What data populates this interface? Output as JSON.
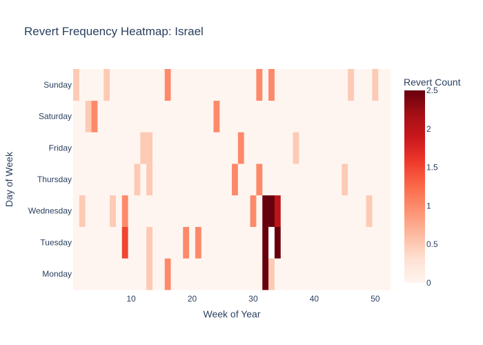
{
  "chart_data": {
    "type": "heatmap",
    "title": "Revert Frequency Heatmap: Israel",
    "xlabel": "Week of Year",
    "ylabel": "Day of Week",
    "colorbar_title": "Revert Count",
    "x_range": [
      0.5,
      52.5
    ],
    "x_ticks": [
      10,
      20,
      30,
      40,
      50
    ],
    "y_categories": [
      "Monday",
      "Tuesday",
      "Wednesday",
      "Thursday",
      "Friday",
      "Saturday",
      "Sunday"
    ],
    "z_range": [
      0,
      2.5
    ],
    "colorbar_ticks": [
      0,
      0.5,
      1,
      1.5,
      2,
      2.5
    ],
    "colorscale": [
      [
        0,
        "#fff5f0"
      ],
      [
        0.125,
        "#fee0d2"
      ],
      [
        0.25,
        "#fcbba1"
      ],
      [
        0.375,
        "#fc9272"
      ],
      [
        0.5,
        "#fb6a4a"
      ],
      [
        0.625,
        "#ef3b2c"
      ],
      [
        0.75,
        "#cb181d"
      ],
      [
        0.875,
        "#a50f15"
      ],
      [
        1,
        "#67000d"
      ]
    ],
    "default_value": 0,
    "cells": [
      {
        "week": 16,
        "day": "Monday",
        "value": 1
      },
      {
        "week": 13,
        "day": "Monday",
        "value": 0.5
      },
      {
        "week": 32,
        "day": "Monday",
        "value": 2.5
      },
      {
        "week": 33,
        "day": "Monday",
        "value": 0.5
      },
      {
        "week": 9,
        "day": "Tuesday",
        "value": 1.5
      },
      {
        "week": 13,
        "day": "Tuesday",
        "value": 0.5
      },
      {
        "week": 19,
        "day": "Tuesday",
        "value": 1
      },
      {
        "week": 21,
        "day": "Tuesday",
        "value": 1
      },
      {
        "week": 32,
        "day": "Tuesday",
        "value": 2.5
      },
      {
        "week": 34,
        "day": "Tuesday",
        "value": 2.5
      },
      {
        "week": 2,
        "day": "Wednesday",
        "value": 0.5
      },
      {
        "week": 7,
        "day": "Wednesday",
        "value": 0.5
      },
      {
        "week": 9,
        "day": "Wednesday",
        "value": 1
      },
      {
        "week": 30,
        "day": "Wednesday",
        "value": 1
      },
      {
        "week": 32,
        "day": "Wednesday",
        "value": 2.5
      },
      {
        "week": 33,
        "day": "Wednesday",
        "value": 2.5
      },
      {
        "week": 34,
        "day": "Wednesday",
        "value": 2
      },
      {
        "week": 49,
        "day": "Wednesday",
        "value": 0.5
      },
      {
        "week": 11,
        "day": "Thursday",
        "value": 0.5
      },
      {
        "week": 13,
        "day": "Thursday",
        "value": 0.5
      },
      {
        "week": 27,
        "day": "Thursday",
        "value": 1
      },
      {
        "week": 31,
        "day": "Thursday",
        "value": 1
      },
      {
        "week": 45,
        "day": "Thursday",
        "value": 0.5
      },
      {
        "week": 12,
        "day": "Friday",
        "value": 0.5
      },
      {
        "week": 13,
        "day": "Friday",
        "value": 0.5
      },
      {
        "week": 28,
        "day": "Friday",
        "value": 1
      },
      {
        "week": 37,
        "day": "Friday",
        "value": 0.5
      },
      {
        "week": 3,
        "day": "Saturday",
        "value": 0.5
      },
      {
        "week": 4,
        "day": "Saturday",
        "value": 1
      },
      {
        "week": 24,
        "day": "Saturday",
        "value": 1
      },
      {
        "week": 1,
        "day": "Sunday",
        "value": 0.5
      },
      {
        "week": 6,
        "day": "Sunday",
        "value": 0.5
      },
      {
        "week": 16,
        "day": "Sunday",
        "value": 1
      },
      {
        "week": 31,
        "day": "Sunday",
        "value": 1
      },
      {
        "week": 33,
        "day": "Sunday",
        "value": 1
      },
      {
        "week": 46,
        "day": "Sunday",
        "value": 0.5
      },
      {
        "week": 50,
        "day": "Sunday",
        "value": 0.5
      }
    ],
    "missing_cells": [
      {
        "week": 33,
        "day": "Tuesday"
      }
    ]
  }
}
